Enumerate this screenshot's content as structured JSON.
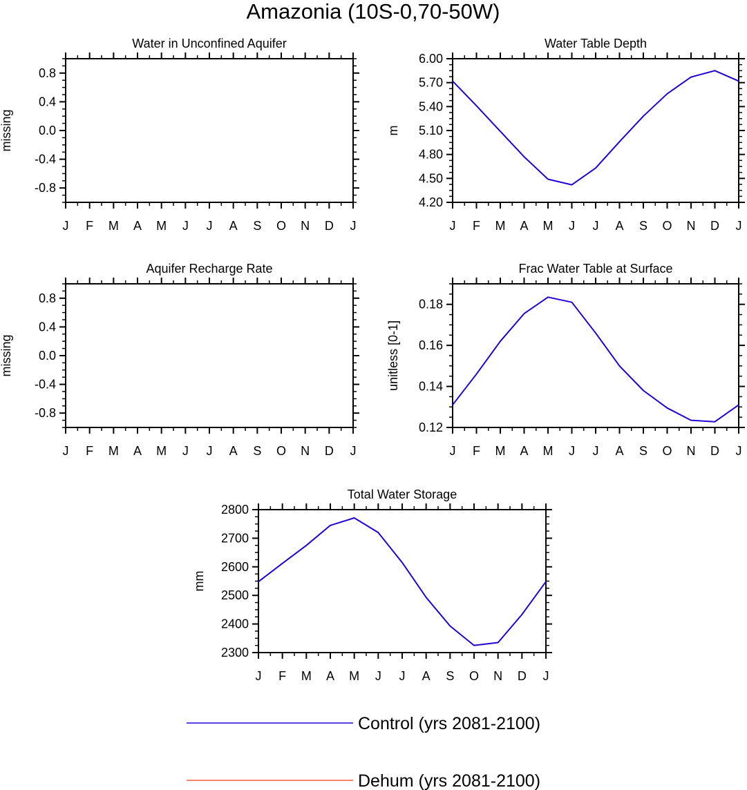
{
  "figure": {
    "title": "Amazonia (10S-0,70-50W)"
  },
  "colors": {
    "control": "#1f00d6",
    "dehum": "#ff5a3c",
    "axis": "#000000"
  },
  "months": [
    "J",
    "F",
    "M",
    "A",
    "M",
    "J",
    "J",
    "A",
    "S",
    "O",
    "N",
    "D",
    "J"
  ],
  "legend": [
    {
      "name": "Control (yrs 2081-2100)",
      "color": "#1f00d6"
    },
    {
      "name": "Dehum (yrs 2081-2100)",
      "color": "#ff5a3c"
    }
  ],
  "chart_data": [
    {
      "type": "line",
      "title": "Water in Unconfined Aquifer",
      "ylabel": "missing",
      "xlabel": "",
      "categories": [
        "J",
        "F",
        "M",
        "A",
        "M",
        "J",
        "J",
        "A",
        "S",
        "O",
        "N",
        "D",
        "J"
      ],
      "ylim": [
        -1.0,
        1.0
      ],
      "yticks": [
        "-0.8",
        "-0.4",
        "0.0",
        "0.4",
        "0.8"
      ],
      "ytick_values": [
        -0.8,
        -0.4,
        0.0,
        0.4,
        0.8
      ],
      "series": []
    },
    {
      "type": "line",
      "title": "Water Table Depth",
      "ylabel": "m",
      "xlabel": "",
      "categories": [
        "J",
        "F",
        "M",
        "A",
        "M",
        "J",
        "J",
        "A",
        "S",
        "O",
        "N",
        "D",
        "J"
      ],
      "ylim": [
        4.2,
        6.0
      ],
      "yticks": [
        "4.20",
        "4.50",
        "4.80",
        "5.10",
        "5.40",
        "5.70",
        "6.00"
      ],
      "ytick_values": [
        4.2,
        4.5,
        4.8,
        5.1,
        5.4,
        5.7,
        6.0
      ],
      "series": [
        {
          "name": "Control (yrs 2081-2100)",
          "color": "#1f00d6",
          "values": [
            5.72,
            5.41,
            5.09,
            4.77,
            4.49,
            4.42,
            4.63,
            4.96,
            5.28,
            5.56,
            5.77,
            5.85,
            5.72
          ]
        }
      ]
    },
    {
      "type": "line",
      "title": "Aquifer Recharge Rate",
      "ylabel": "missing",
      "xlabel": "",
      "categories": [
        "J",
        "F",
        "M",
        "A",
        "M",
        "J",
        "J",
        "A",
        "S",
        "O",
        "N",
        "D",
        "J"
      ],
      "ylim": [
        -1.0,
        1.0
      ],
      "yticks": [
        "-0.8",
        "-0.4",
        "0.0",
        "0.4",
        "0.8"
      ],
      "ytick_values": [
        -0.8,
        -0.4,
        0.0,
        0.4,
        0.8
      ],
      "series": []
    },
    {
      "type": "line",
      "title": "Frac Water Table at Surface",
      "ylabel": "unitless [0-1]",
      "xlabel": "",
      "categories": [
        "J",
        "F",
        "M",
        "A",
        "M",
        "J",
        "J",
        "A",
        "S",
        "O",
        "N",
        "D",
        "J"
      ],
      "ylim": [
        0.12,
        0.19
      ],
      "yticks": [
        "0.12",
        "0.14",
        "0.16",
        "0.18"
      ],
      "ytick_values": [
        0.12,
        0.14,
        0.16,
        0.18
      ],
      "series": [
        {
          "name": "Control (yrs 2081-2100)",
          "color": "#1f00d6",
          "values": [
            0.131,
            0.146,
            0.162,
            0.1755,
            0.1835,
            0.181,
            0.166,
            0.15,
            0.138,
            0.1295,
            0.1235,
            0.1228,
            0.131
          ]
        }
      ]
    },
    {
      "type": "line",
      "title": "Total Water Storage",
      "ylabel": "mm",
      "xlabel": "",
      "categories": [
        "J",
        "F",
        "M",
        "A",
        "M",
        "J",
        "J",
        "A",
        "S",
        "O",
        "N",
        "D",
        "J"
      ],
      "ylim": [
        2300,
        2800
      ],
      "yticks": [
        "2300",
        "2400",
        "2500",
        "2600",
        "2700",
        "2800"
      ],
      "ytick_values": [
        2300,
        2400,
        2500,
        2600,
        2700,
        2800
      ],
      "series": [
        {
          "name": "Control (yrs 2081-2100)",
          "color": "#1f00d6",
          "values": [
            2548,
            2612,
            2675,
            2745,
            2771,
            2720,
            2615,
            2493,
            2393,
            2325,
            2335,
            2433,
            2548
          ]
        }
      ]
    }
  ]
}
